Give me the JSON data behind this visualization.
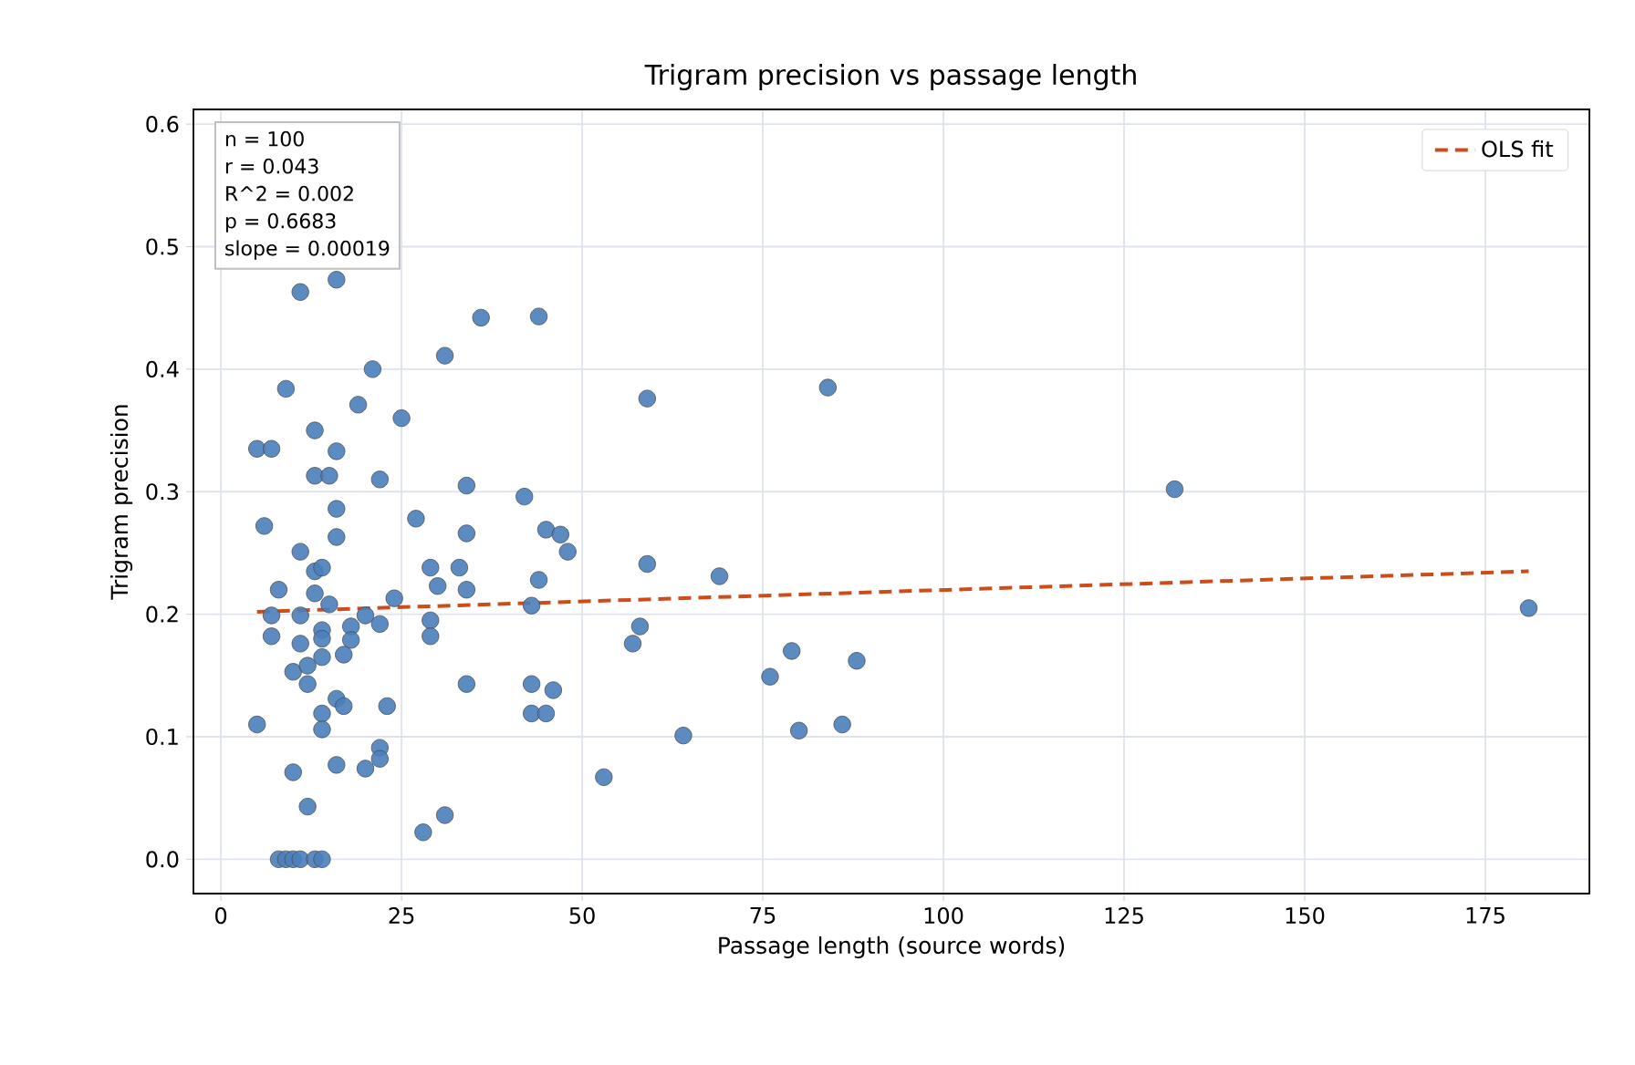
{
  "chart_data": {
    "type": "scatter",
    "title": "Trigram precision vs passage length",
    "xlabel": "Passage length (source words)",
    "ylabel": "Trigram precision",
    "annotations": [
      "n = 100",
      "r = 0.043",
      "R^2 = 0.002",
      "p = 0.6683",
      "slope = 0.00019"
    ],
    "xlim": [
      -3.8,
      189.4
    ],
    "ylim": [
      -0.028,
      0.612
    ],
    "xticks": [
      0,
      25,
      50,
      75,
      100,
      125,
      150,
      175
    ],
    "yticks": [
      {
        "value": 0,
        "label": "0.0"
      },
      {
        "value": 0.1,
        "label": "0.1"
      },
      {
        "value": 0.2,
        "label": "0.2"
      },
      {
        "value": 0.3,
        "label": "0.3"
      },
      {
        "value": 0.4,
        "label": "0.4"
      },
      {
        "value": 0.5,
        "label": "0.5"
      },
      {
        "value": 0.6,
        "label": "0.6"
      }
    ],
    "grid": true,
    "legend": "top right",
    "series": [
      {
        "color": "#4a7ebb",
        "marker": "circle",
        "x": [
          11,
          16,
          36,
          44,
          31,
          21,
          9,
          19,
          25,
          59,
          84,
          13,
          5,
          7,
          16,
          13,
          15,
          22,
          34,
          132,
          42,
          16,
          6,
          27,
          45,
          47,
          34,
          16,
          11,
          48,
          59,
          29,
          33,
          13,
          14,
          69,
          30,
          44,
          34,
          8,
          13,
          15,
          20,
          24,
          43,
          7,
          11,
          7,
          14,
          14,
          18,
          18,
          22,
          29,
          29,
          58,
          57,
          11,
          17,
          14,
          10,
          12,
          12,
          34,
          43,
          46,
          16,
          17,
          14,
          23,
          14,
          5,
          43,
          45,
          22,
          22,
          20,
          16,
          10,
          12,
          31,
          28,
          8,
          9,
          10,
          11,
          13,
          14,
          76,
          79,
          88,
          80,
          86,
          64,
          53,
          181
        ],
        "values": [
          0.463,
          0.473,
          0.442,
          0.443,
          0.411,
          0.4,
          0.384,
          0.371,
          0.36,
          0.376,
          0.385,
          0.35,
          0.335,
          0.335,
          0.333,
          0.313,
          0.313,
          0.31,
          0.305,
          0.302,
          0.296,
          0.286,
          0.272,
          0.278,
          0.269,
          0.265,
          0.266,
          0.263,
          0.251,
          0.251,
          0.241,
          0.238,
          0.238,
          0.235,
          0.238,
          0.231,
          0.223,
          0.228,
          0.22,
          0.22,
          0.217,
          0.208,
          0.199,
          0.213,
          0.207,
          0.199,
          0.199,
          0.182,
          0.187,
          0.18,
          0.19,
          0.179,
          0.192,
          0.195,
          0.182,
          0.19,
          0.176,
          0.176,
          0.167,
          0.165,
          0.153,
          0.158,
          0.143,
          0.143,
          0.143,
          0.138,
          0.131,
          0.125,
          0.119,
          0.125,
          0.106,
          0.11,
          0.119,
          0.119,
          0.091,
          0.082,
          0.074,
          0.077,
          0.071,
          0.043,
          0.036,
          0.022,
          0,
          0,
          0,
          0,
          0,
          0,
          0.149,
          0.17,
          0.162,
          0.105,
          0.11,
          0.101,
          0.067,
          0.205
        ]
      },
      {
        "type": "line",
        "name": "OLS fit",
        "color": "#cc4c1a",
        "line_style": "dashed",
        "marker": "none",
        "x": [
          5,
          181
        ],
        "values": [
          0.202,
          0.235
        ]
      }
    ]
  }
}
